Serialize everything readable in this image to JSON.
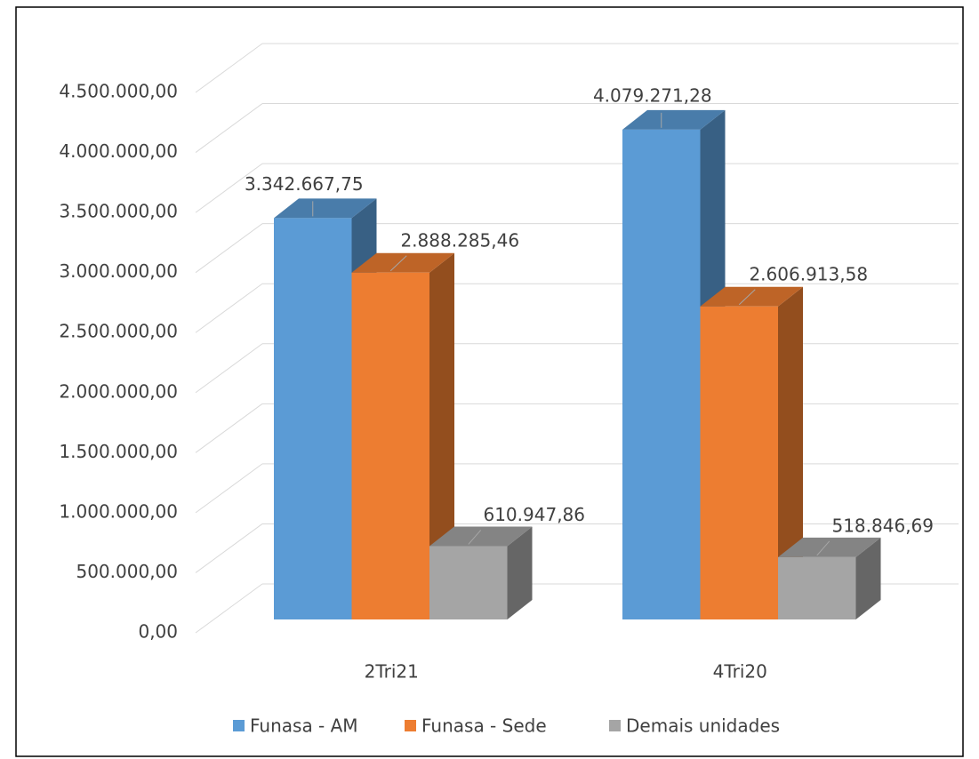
{
  "chart_data": {
    "type": "bar3d",
    "categories": [
      "2Tri21",
      "4Tri20"
    ],
    "series": [
      {
        "name": "Funasa - AM",
        "color": "#5b9bd5",
        "values": [
          3342667.75,
          4079271.28
        ],
        "value_labels": [
          "3.342.667,75",
          "4.079.271,28"
        ]
      },
      {
        "name": "Funasa - Sede",
        "color": "#ed7d31",
        "values": [
          2888285.46,
          2606913.58
        ],
        "value_labels": [
          "2.888.285,46",
          "2.606.913,58"
        ]
      },
      {
        "name": "Demais unidades",
        "color": "#a5a5a5",
        "values": [
          610947.86,
          518846.69
        ],
        "value_labels": [
          "610.947,86",
          "518.846,69"
        ]
      }
    ],
    "ylim": [
      0,
      4500000
    ],
    "yticks": [
      {
        "value": 0,
        "label": "0,00"
      },
      {
        "value": 500000,
        "label": "500.000,00"
      },
      {
        "value": 1000000,
        "label": "1.000.000,00"
      },
      {
        "value": 1500000,
        "label": "1.500.000,00"
      },
      {
        "value": 2000000,
        "label": "2.000.000,00"
      },
      {
        "value": 2500000,
        "label": "2.500.000,00"
      },
      {
        "value": 3000000,
        "label": "3.000.000,00"
      },
      {
        "value": 3500000,
        "label": "3.500.000,00"
      },
      {
        "value": 4000000,
        "label": "4.000.000,00"
      },
      {
        "value": 4500000,
        "label": "4.500.000,00"
      }
    ],
    "grid": true,
    "legend": "bottom"
  }
}
